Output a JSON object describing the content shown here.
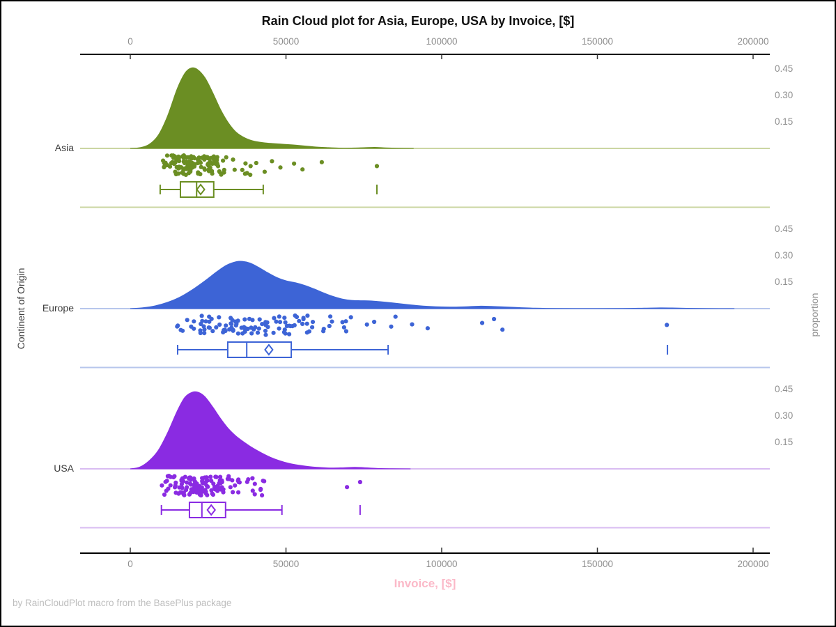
{
  "title": "Rain Cloud plot for Asia, Europe, USA by Invoice, [$]",
  "footer": "by RainCloudPlot macro from the BasePlus package",
  "x_axis": {
    "label": "Invoice, [$]",
    "label_color": "#fbb9c8",
    "tick_values": [
      0,
      50000,
      100000,
      150000,
      200000
    ],
    "tick_labels": [
      "0",
      "50000",
      "100000",
      "150000",
      "200000"
    ]
  },
  "y_axis": {
    "label": "Continent of Origin"
  },
  "right_axis": {
    "label": "proportion",
    "tick_values": [
      0.15,
      0.3,
      0.45
    ],
    "tick_labels": [
      "0.15",
      "0.30",
      "0.45"
    ]
  },
  "chart_data": {
    "type": "raincloud",
    "title": "Rain Cloud plot for Asia, Europe, USA by Invoice, [$]",
    "xlabel": "Invoice, [$]",
    "ylabel": "Continent of Origin",
    "x_range": [
      0,
      200000
    ],
    "proportion_ticks": [
      0.15,
      0.3,
      0.45
    ],
    "series": [
      {
        "name": "Asia",
        "color": "#6b8e23",
        "light_color": "#cbd6a2",
        "density": [
          [
            0,
            0
          ],
          [
            3000,
            0.004
          ],
          [
            6000,
            0.022
          ],
          [
            9000,
            0.075
          ],
          [
            12000,
            0.185
          ],
          [
            15000,
            0.335
          ],
          [
            17500,
            0.425
          ],
          [
            19500,
            0.455
          ],
          [
            21500,
            0.448
          ],
          [
            24000,
            0.4
          ],
          [
            26500,
            0.315
          ],
          [
            29000,
            0.22
          ],
          [
            31500,
            0.145
          ],
          [
            34000,
            0.092
          ],
          [
            37000,
            0.058
          ],
          [
            40000,
            0.04
          ],
          [
            44000,
            0.03
          ],
          [
            48000,
            0.025
          ],
          [
            52000,
            0.02
          ],
          [
            56000,
            0.014
          ],
          [
            59000,
            0.009
          ],
          [
            63000,
            0.005
          ],
          [
            67000,
            0.002
          ],
          [
            71000,
            0.002
          ],
          [
            75000,
            0.004
          ],
          [
            78500,
            0.006
          ],
          [
            82000,
            0.003
          ],
          [
            86000,
            0.001
          ],
          [
            91000,
            0
          ]
        ],
        "box": {
          "min": 9600,
          "q1": 16100,
          "median": 21300,
          "mean": 22600,
          "q3": 26800,
          "max": 42700,
          "far_outliers": [
            79200
          ]
        },
        "strip": {
          "seed": 11,
          "n": 135,
          "center": 21000,
          "sigma": 0.3,
          "clip": [
            8800,
            43500
          ],
          "extra_points": [
            [
              45500,
              0.3
            ],
            [
              48200,
              0.62
            ],
            [
              52600,
              0.42
            ],
            [
              55300,
              0.72
            ],
            [
              61500,
              0.35
            ],
            [
              79200,
              0.55
            ]
          ]
        }
      },
      {
        "name": "Europe",
        "color": "#3d64d6",
        "light_color": "#b7c6ec",
        "density": [
          [
            0,
            0
          ],
          [
            4000,
            0.005
          ],
          [
            8000,
            0.016
          ],
          [
            12000,
            0.036
          ],
          [
            16000,
            0.066
          ],
          [
            20000,
            0.108
          ],
          [
            24000,
            0.158
          ],
          [
            28000,
            0.212
          ],
          [
            31000,
            0.247
          ],
          [
            34000,
            0.266
          ],
          [
            36000,
            0.268
          ],
          [
            38500,
            0.258
          ],
          [
            41000,
            0.236
          ],
          [
            44000,
            0.205
          ],
          [
            47000,
            0.177
          ],
          [
            50000,
            0.158
          ],
          [
            53000,
            0.147
          ],
          [
            56000,
            0.132
          ],
          [
            59000,
            0.112
          ],
          [
            62000,
            0.09
          ],
          [
            65000,
            0.07
          ],
          [
            68000,
            0.055
          ],
          [
            71000,
            0.047
          ],
          [
            74000,
            0.045
          ],
          [
            77000,
            0.044
          ],
          [
            80000,
            0.04
          ],
          [
            84000,
            0.033
          ],
          [
            88000,
            0.025
          ],
          [
            92000,
            0.018
          ],
          [
            96000,
            0.013
          ],
          [
            100000,
            0.01
          ],
          [
            104000,
            0.009
          ],
          [
            108000,
            0.011
          ],
          [
            112000,
            0.014
          ],
          [
            116000,
            0.013
          ],
          [
            120000,
            0.01
          ],
          [
            125000,
            0.006
          ],
          [
            130000,
            0.003
          ],
          [
            137000,
            0.001
          ],
          [
            148000,
            0.0005
          ],
          [
            158000,
            0.001
          ],
          [
            165000,
            0.003
          ],
          [
            170000,
            0.0045
          ],
          [
            174000,
            0.004
          ],
          [
            179000,
            0.002
          ],
          [
            186000,
            0.0005
          ],
          [
            194000,
            0
          ]
        ],
        "box": {
          "min": 15200,
          "q1": 31300,
          "median": 37400,
          "mean": 44500,
          "q3": 51700,
          "max": 82800,
          "far_outliers": [
            172500
          ]
        },
        "strip": {
          "seed": 22,
          "n": 112,
          "center": 38000,
          "sigma": 0.4,
          "clip": [
            14800,
            86000
          ],
          "extra_points": [
            [
              90500,
              0.45
            ],
            [
              95500,
              0.65
            ],
            [
              113000,
              0.38
            ],
            [
              116800,
              0.18
            ],
            [
              119500,
              0.72
            ],
            [
              172300,
              0.48
            ]
          ]
        }
      },
      {
        "name": "USA",
        "color": "#8a2be2",
        "light_color": "#d9bcf2",
        "density": [
          [
            0,
            0
          ],
          [
            3000,
            0.01
          ],
          [
            6000,
            0.045
          ],
          [
            9000,
            0.105
          ],
          [
            12000,
            0.205
          ],
          [
            15000,
            0.325
          ],
          [
            17500,
            0.405
          ],
          [
            20000,
            0.435
          ],
          [
            22000,
            0.433
          ],
          [
            24000,
            0.408
          ],
          [
            26500,
            0.35
          ],
          [
            29000,
            0.285
          ],
          [
            31500,
            0.228
          ],
          [
            34000,
            0.185
          ],
          [
            36500,
            0.152
          ],
          [
            39000,
            0.122
          ],
          [
            42000,
            0.092
          ],
          [
            45000,
            0.066
          ],
          [
            48000,
            0.046
          ],
          [
            51000,
            0.031
          ],
          [
            54000,
            0.021
          ],
          [
            57000,
            0.014
          ],
          [
            60000,
            0.009
          ],
          [
            64000,
            0.005
          ],
          [
            68000,
            0.006
          ],
          [
            72000,
            0.009
          ],
          [
            75000,
            0.007
          ],
          [
            79000,
            0.003
          ],
          [
            84000,
            0.001
          ],
          [
            90000,
            0
          ]
        ],
        "box": {
          "min": 10000,
          "q1": 19000,
          "median": 23000,
          "mean": 26000,
          "q3": 30600,
          "max": 48700,
          "far_outliers": [
            73800
          ]
        },
        "strip": {
          "seed": 33,
          "n": 140,
          "center": 23500,
          "sigma": 0.34,
          "clip": [
            9900,
            49500
          ],
          "extra_points": [
            [
              69600,
              0.58
            ],
            [
              73800,
              0.32
            ]
          ]
        }
      }
    ]
  }
}
